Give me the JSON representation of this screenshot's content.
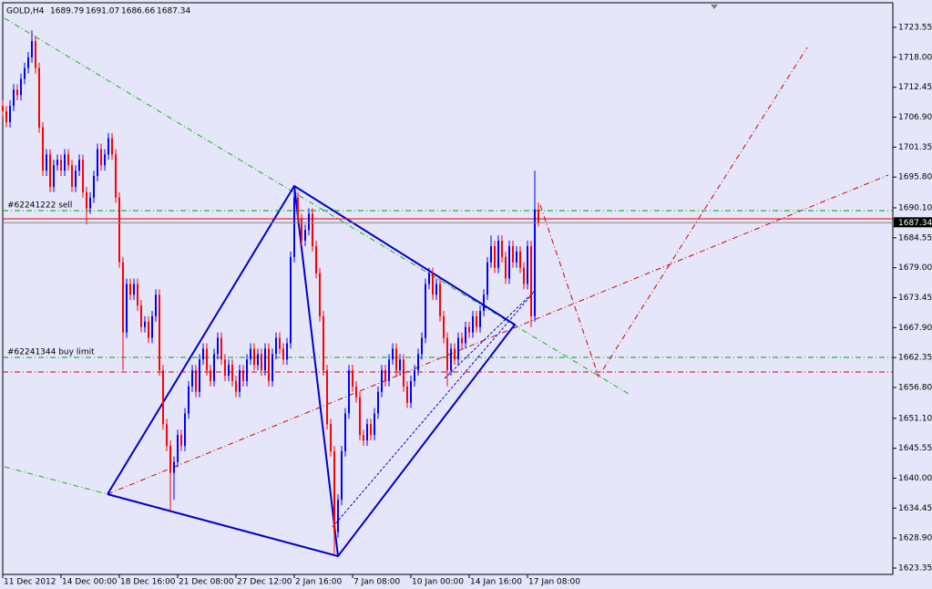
{
  "chart_data": {
    "type": "candlestick",
    "symbol": "GOLD,H4",
    "up_color": "#0000ff",
    "down_color": "#ff0000",
    "open": [
      1709,
      1708,
      1706,
      1709,
      1712,
      1711,
      1714,
      1716,
      1718,
      1721,
      1716,
      1705,
      1697,
      1700,
      1694,
      1698,
      1699,
      1697,
      1700,
      1698,
      1694,
      1697,
      1699,
      1693,
      1690,
      1692,
      1696,
      1701,
      1698,
      1700,
      1703,
      1700,
      1692,
      1680,
      1667,
      1676,
      1674,
      1676,
      1672,
      1668,
      1669,
      1666,
      1670,
      1674,
      1660,
      1650,
      1646,
      1641,
      1643,
      1648,
      1646,
      1652,
      1657,
      1660,
      1656,
      1662,
      1664,
      1660,
      1658,
      1663,
      1666,
      1662,
      1659,
      1661,
      1658,
      1656,
      1660,
      1658,
      1662,
      1664,
      1661,
      1663,
      1660,
      1664,
      1658,
      1663,
      1666,
      1664,
      1662,
      1665,
      1681,
      1692,
      1688,
      1684,
      1686,
      1689,
      1683,
      1678,
      1670,
      1660,
      1650,
      1645,
      1630,
      1636,
      1645,
      1652,
      1660,
      1657,
      1655,
      1648,
      1647,
      1650,
      1648,
      1652,
      1656,
      1660,
      1658,
      1662,
      1664,
      1660,
      1662,
      1657,
      1654,
      1658,
      1660,
      1663,
      1666,
      1676,
      1678,
      1674,
      1676,
      1670,
      1666,
      1660,
      1664,
      1662,
      1666,
      1665,
      1668,
      1667,
      1670,
      1668,
      1671,
      1674,
      1680,
      1683,
      1679,
      1684,
      1681,
      1677,
      1683,
      1680,
      1682,
      1679,
      1676,
      1683,
      1670,
      1689.79
    ],
    "high": [
      1710,
      1709,
      1710,
      1713,
      1713,
      1715,
      1717,
      1719,
      1723,
      1722,
      1717,
      1706,
      1701,
      1701,
      1699,
      1700,
      1700,
      1701,
      1701,
      1699,
      1698,
      1700,
      1700,
      1694,
      1693,
      1697,
      1702,
      1702,
      1701,
      1704,
      1704,
      1701,
      1693,
      1681,
      1677,
      1677,
      1677,
      1677,
      1673,
      1670,
      1670,
      1671,
      1675,
      1675,
      1661,
      1651,
      1647,
      1644,
      1649,
      1649,
      1653,
      1658,
      1661,
      1661,
      1663,
      1665,
      1665,
      1661,
      1664,
      1667,
      1667,
      1663,
      1662,
      1662,
      1659,
      1661,
      1661,
      1663,
      1665,
      1665,
      1664,
      1664,
      1665,
      1665,
      1664,
      1667,
      1667,
      1665,
      1666,
      1682,
      1694,
      1693,
      1689,
      1687,
      1690,
      1690,
      1684,
      1679,
      1671,
      1661,
      1651,
      1646,
      1637,
      1646,
      1653,
      1661,
      1661,
      1658,
      1656,
      1649,
      1651,
      1651,
      1653,
      1657,
      1661,
      1661,
      1663,
      1665,
      1665,
      1663,
      1663,
      1658,
      1659,
      1661,
      1664,
      1667,
      1677,
      1679,
      1679,
      1677,
      1677,
      1671,
      1667,
      1665,
      1665,
      1667,
      1667,
      1669,
      1669,
      1671,
      1671,
      1672,
      1675,
      1681,
      1685,
      1684,
      1685,
      1685,
      1682,
      1684,
      1684,
      1683,
      1683,
      1680,
      1684,
      1684,
      1697,
      1691.07
    ],
    "low": [
      1707,
      1705,
      1705,
      1708,
      1710,
      1710,
      1713,
      1715,
      1717,
      1715,
      1704,
      1696,
      1696,
      1693,
      1693,
      1697,
      1696,
      1696,
      1697,
      1693,
      1693,
      1696,
      1692,
      1687,
      1689,
      1691,
      1695,
      1697,
      1697,
      1699,
      1699,
      1691,
      1679,
      1660,
      1666,
      1673,
      1673,
      1671,
      1667,
      1667,
      1665,
      1665,
      1669,
      1659,
      1649,
      1645,
      1634,
      1636,
      1642,
      1645,
      1645,
      1651,
      1656,
      1655,
      1655,
      1661,
      1659,
      1657,
      1657,
      1662,
      1661,
      1658,
      1658,
      1657,
      1655,
      1655,
      1657,
      1657,
      1661,
      1660,
      1660,
      1659,
      1659,
      1657,
      1657,
      1662,
      1663,
      1661,
      1661,
      1664,
      1680,
      1687,
      1683,
      1683,
      1685,
      1682,
      1677,
      1669,
      1659,
      1649,
      1644,
      1626,
      1629,
      1635,
      1644,
      1651,
      1656,
      1654,
      1647,
      1646,
      1646,
      1647,
      1647,
      1651,
      1655,
      1657,
      1657,
      1661,
      1659,
      1659,
      1656,
      1653,
      1653,
      1657,
      1659,
      1662,
      1665,
      1675,
      1673,
      1673,
      1669,
      1665,
      1657,
      1659,
      1661,
      1661,
      1664,
      1664,
      1666,
      1666,
      1667,
      1667,
      1670,
      1673,
      1679,
      1678,
      1678,
      1680,
      1676,
      1676,
      1679,
      1679,
      1678,
      1675,
      1675,
      1668,
      1669,
      1686.66
    ],
    "close": [
      1708,
      1706,
      1709,
      1712,
      1711,
      1714,
      1716,
      1718,
      1721,
      1716,
      1705,
      1697,
      1700,
      1694,
      1698,
      1699,
      1697,
      1700,
      1698,
      1694,
      1697,
      1699,
      1693,
      1690,
      1692,
      1696,
      1701,
      1698,
      1700,
      1703,
      1700,
      1692,
      1680,
      1667,
      1676,
      1674,
      1676,
      1672,
      1668,
      1669,
      1666,
      1670,
      1674,
      1660,
      1650,
      1646,
      1641,
      1643,
      1648,
      1646,
      1652,
      1657,
      1660,
      1656,
      1662,
      1664,
      1660,
      1658,
      1663,
      1666,
      1662,
      1659,
      1661,
      1658,
      1656,
      1660,
      1658,
      1662,
      1664,
      1661,
      1663,
      1660,
      1664,
      1658,
      1663,
      1666,
      1664,
      1662,
      1665,
      1681,
      1692,
      1688,
      1684,
      1686,
      1689,
      1683,
      1678,
      1670,
      1660,
      1650,
      1645,
      1630,
      1636,
      1645,
      1652,
      1660,
      1657,
      1655,
      1648,
      1647,
      1650,
      1648,
      1652,
      1656,
      1660,
      1658,
      1662,
      1664,
      1660,
      1662,
      1657,
      1654,
      1658,
      1660,
      1663,
      1666,
      1676,
      1678,
      1674,
      1676,
      1670,
      1666,
      1660,
      1664,
      1662,
      1666,
      1665,
      1668,
      1667,
      1670,
      1668,
      1671,
      1674,
      1680,
      1683,
      1679,
      1684,
      1681,
      1677,
      1683,
      1680,
      1682,
      1679,
      1676,
      1683,
      1670,
      1689.79,
      1687.34
    ],
    "ylim": [
      1622.17,
      1727.94
    ],
    "yticks": [
      1723.55,
      {
        "value": 1718,
        "label": "1718.00"
      },
      1712.45,
      {
        "value": 1706.9,
        "label": "1706.90"
      },
      1701.35,
      {
        "value": 1695.8,
        "label": "1695.80"
      },
      {
        "value": 1690.1,
        "label": "1690.10"
      },
      1684.55,
      {
        "value": 1679,
        "label": "1679.00"
      },
      1673.45,
      {
        "value": 1667.9,
        "label": "1667.90"
      },
      1662.35,
      {
        "value": 1656.8,
        "label": "1656.80"
      },
      {
        "value": 1651.1,
        "label": "1651.10"
      },
      1645.55,
      {
        "value": 1640,
        "label": "1640.00"
      },
      1634.45,
      {
        "value": 1628.9,
        "label": "1628.90"
      },
      1623.35
    ],
    "xticks": [
      {
        "value": 0,
        "label": "11 Dec 2012"
      },
      {
        "value": 16,
        "label": "14 Dec 00:00"
      },
      {
        "value": 32,
        "label": "18 Dec 16:00"
      },
      {
        "value": 48,
        "label": "21 Dec 08:00"
      },
      {
        "value": 64,
        "label": "27 Dec 12:00"
      },
      {
        "value": 80,
        "label": "2 Jan 16:00"
      },
      {
        "value": 96,
        "label": "7 Jan 08:00"
      },
      {
        "value": 112,
        "label": "10 Jan 00:00"
      },
      {
        "value": 128,
        "label": "14 Jan 16:00"
      },
      {
        "value": 144,
        "label": "17 Jan 08:00"
      }
    ],
    "levels": [
      {
        "label": "#62241222 sell",
        "value": 1689.59,
        "color": "#00a000",
        "style": "dashdot"
      },
      {
        "label": "#62241344 buy limit",
        "value": 1662.38,
        "color": "#00a000",
        "style": "dashdot"
      },
      {
        "value": 1659.68,
        "color": "#d00000",
        "style": "dashdot"
      },
      {
        "value": 1688.07,
        "color": "#e00000",
        "style": "solid"
      }
    ]
  }
}
